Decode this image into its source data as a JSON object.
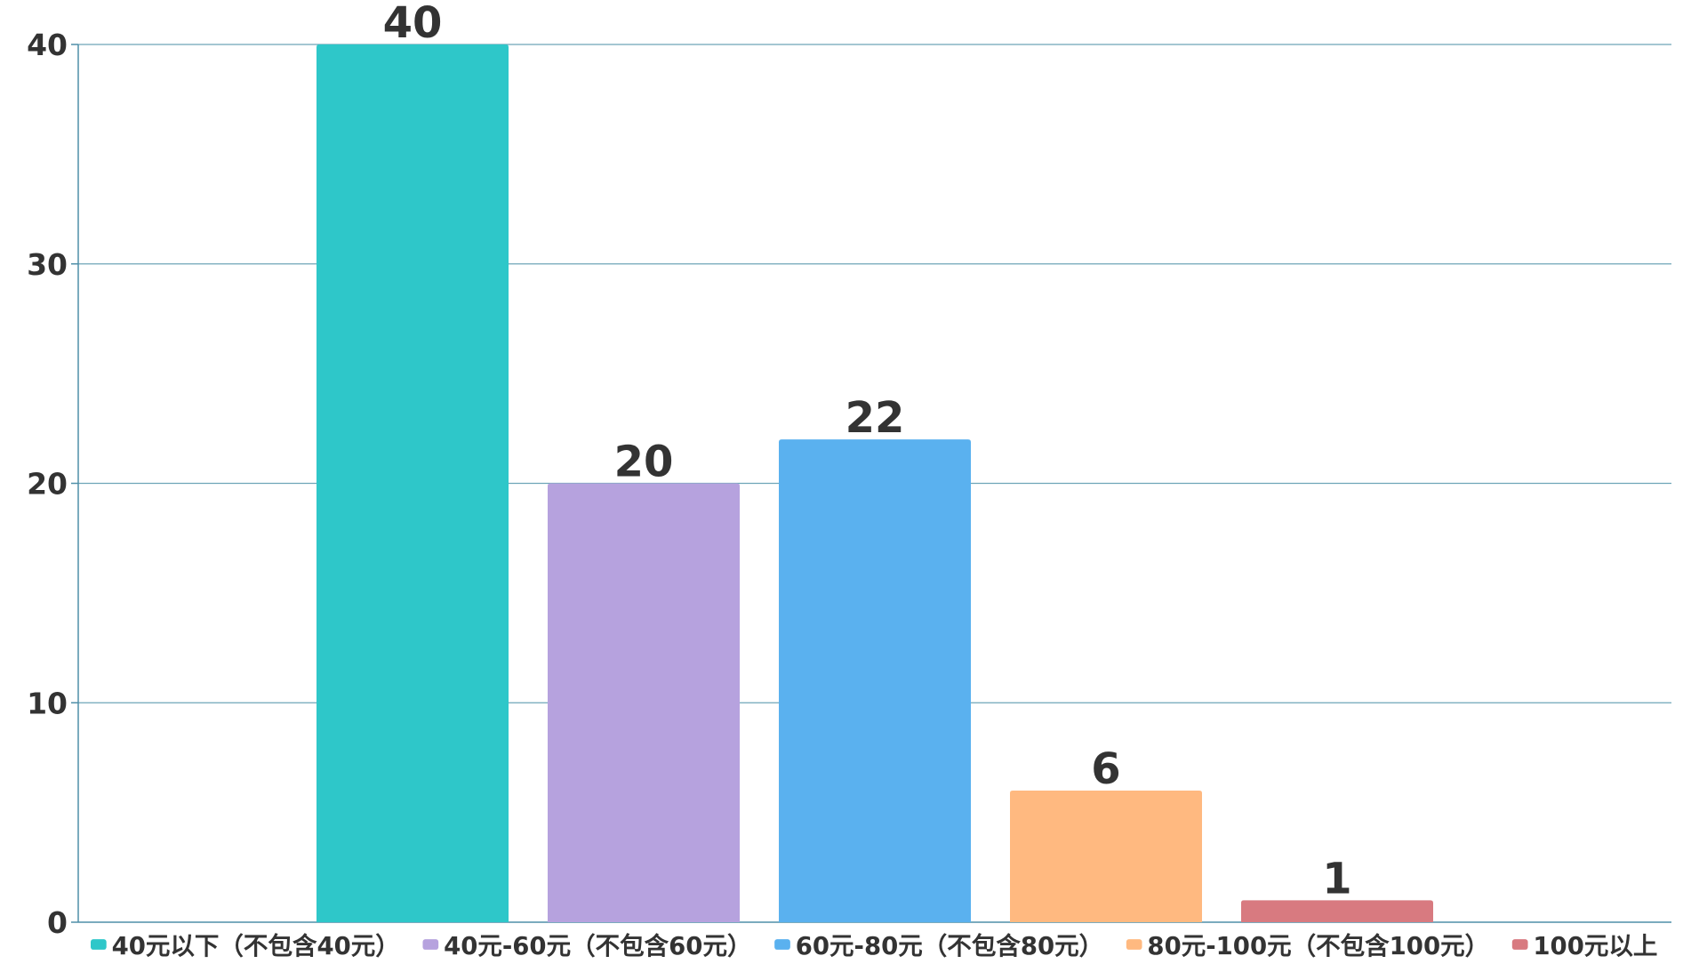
{
  "chart_data": {
    "type": "bar",
    "title": "",
    "xlabel": "",
    "ylabel": "",
    "ylim": [
      0,
      40
    ],
    "yticks": [
      0,
      10,
      20,
      30,
      40
    ],
    "grid": true,
    "legend_position": "bottom",
    "show_value_labels": true,
    "categories": [
      "40元以下（不包含40元）",
      "40元-60元（不包含60元）",
      "60元-80元（不包含80元）",
      "80元-100元（不包含100元）",
      "100元以上"
    ],
    "values": [
      40,
      20,
      22,
      6,
      1
    ],
    "colors": [
      "#2ec7c9",
      "#b6a2de",
      "#5ab1ef",
      "#ffb980",
      "#d87a80"
    ],
    "axis_color": "#4f8fa8",
    "grid_color": "#6ea5b8",
    "text_color": "#333333"
  }
}
